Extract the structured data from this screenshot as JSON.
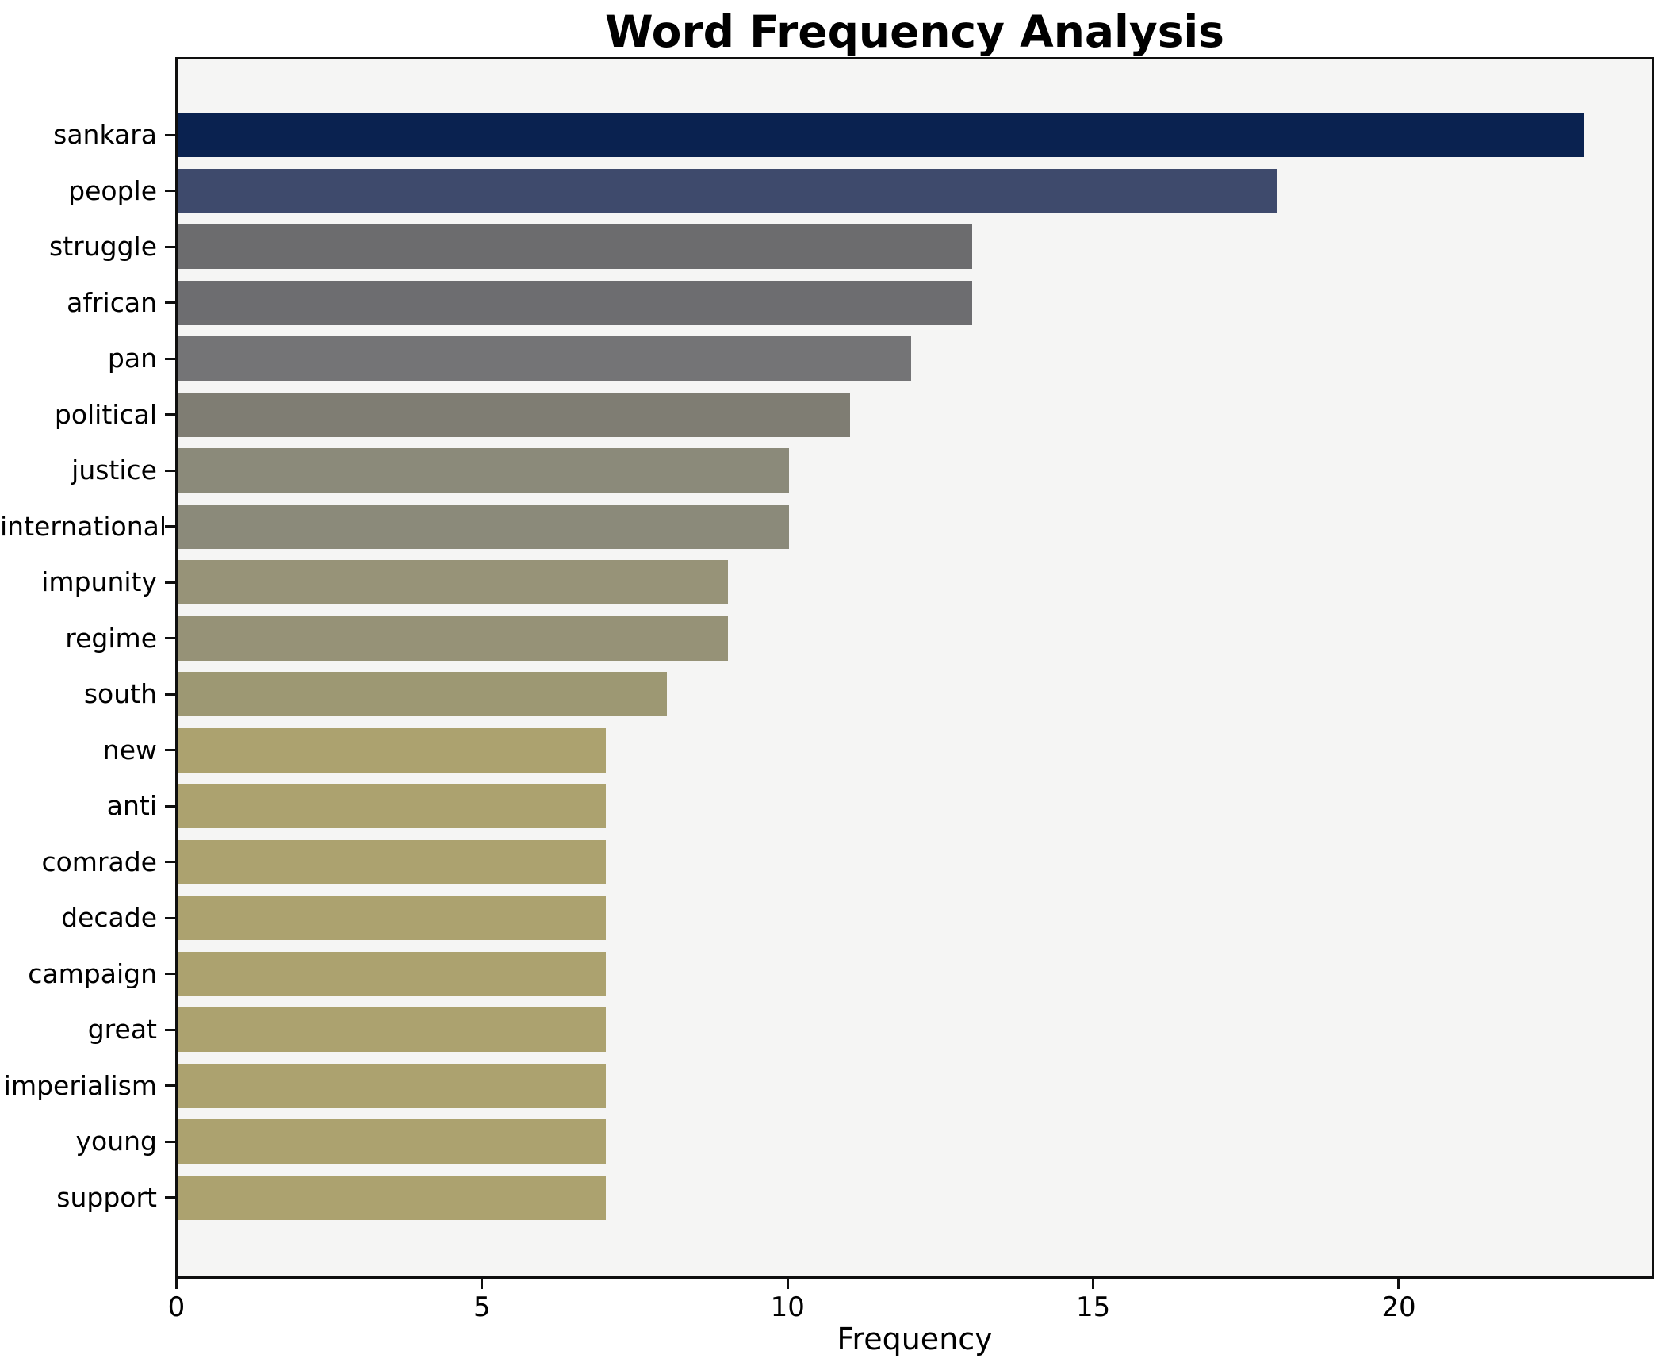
{
  "figure": {
    "background": "#ffffff",
    "plot_background": "#f5f5f4",
    "spine_color": "#0f0f0f"
  },
  "chart_data": {
    "type": "bar",
    "orientation": "horizontal",
    "title": "Word Frequency Analysis",
    "xlabel": "Frequency",
    "ylabel": "",
    "categories": [
      "sankara",
      "people",
      "struggle",
      "african",
      "pan",
      "political",
      "justice",
      "international",
      "impunity",
      "regime",
      "south",
      "new",
      "anti",
      "comrade",
      "decade",
      "campaign",
      "great",
      "imperialism",
      "young",
      "support"
    ],
    "values": [
      23,
      18,
      13,
      13,
      12,
      11,
      10,
      10,
      9,
      9,
      8,
      7,
      7,
      7,
      7,
      7,
      7,
      7,
      7,
      7
    ],
    "bar_colors": [
      "#0a2250",
      "#3e4a6c",
      "#6c6c6e",
      "#6d6d70",
      "#747476",
      "#7f7d73",
      "#8b8a7a",
      "#8b8a7a",
      "#979378",
      "#969277",
      "#9d9873",
      "#aca26f",
      "#aca26f",
      "#aca26f",
      "#aca26f",
      "#aca26f",
      "#aca26f",
      "#aca26f",
      "#aca26f",
      "#aca26f"
    ],
    "xlim": [
      0,
      24.12
    ],
    "xticks": [
      0,
      5,
      10,
      15,
      20
    ],
    "grid": false,
    "legend": null
  }
}
